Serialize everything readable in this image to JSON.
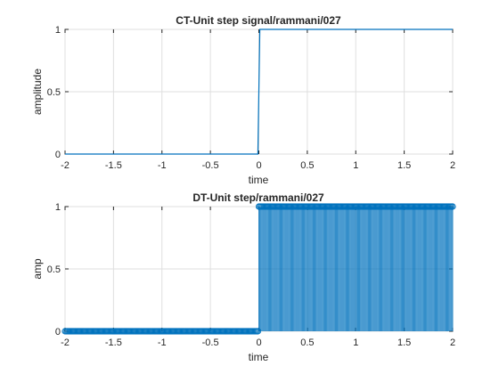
{
  "series_color": "#0072BD",
  "chart_data": [
    {
      "type": "line",
      "title": "CT-Unit step signal/rammani/027",
      "xlabel": "time",
      "ylabel": "amplitude",
      "xlim": [
        -2,
        2
      ],
      "ylim": [
        0,
        1
      ],
      "xticks": [
        -2,
        -1.5,
        -1,
        -0.5,
        0,
        0.5,
        1,
        1.5,
        2
      ],
      "xtick_labels": [
        "-2",
        "-1.5",
        "-1",
        "-0.5",
        "0",
        "0.5",
        "1",
        "1.5",
        "2"
      ],
      "yticks": [
        0,
        0.5,
        1
      ],
      "ytick_labels": [
        "0",
        "0.5",
        "1"
      ],
      "grid": true,
      "x": [
        -2,
        -0.01,
        0.01,
        2
      ],
      "y": [
        0,
        0,
        1,
        1
      ]
    },
    {
      "type": "stem",
      "title": "DT-Unit step/rammani/027",
      "xlabel": "time",
      "ylabel": "amp",
      "xlim": [
        -2,
        2
      ],
      "ylim": [
        0,
        1
      ],
      "xticks": [
        -2,
        -1.5,
        -1,
        -0.5,
        0,
        0.5,
        1,
        1.5,
        2
      ],
      "xtick_labels": [
        "-2",
        "-1.5",
        "-1",
        "-0.5",
        "0",
        "0.5",
        "1",
        "1.5",
        "2"
      ],
      "yticks": [
        0,
        0.5,
        1
      ],
      "ytick_labels": [
        "0",
        "0.5",
        "1"
      ],
      "grid": true,
      "x_start": -2,
      "x_step": 0.01,
      "x_end": 2,
      "rule": "y = 1 for x >= 0, y = 0 for x < 0"
    }
  ]
}
